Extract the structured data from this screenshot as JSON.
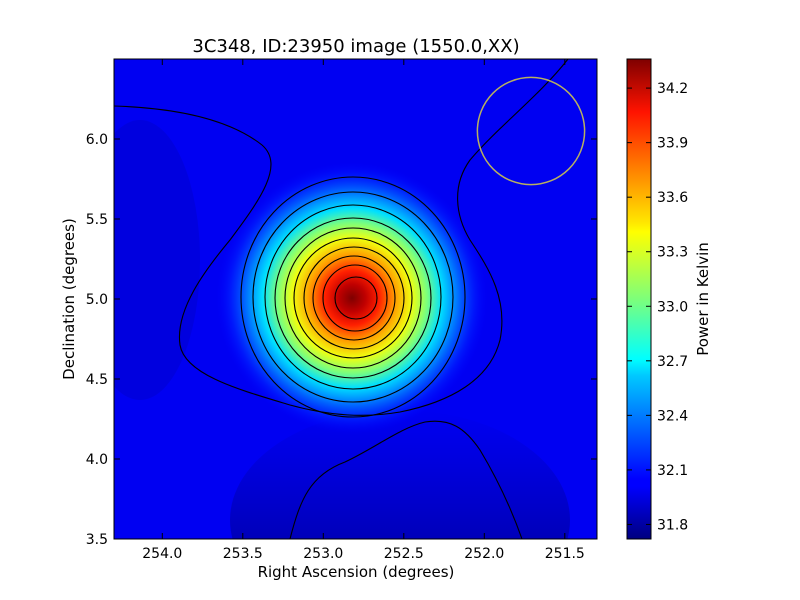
{
  "chart_data": {
    "type": "heatmap",
    "title": "3C348, ID:23950 image (1550.0,XX)",
    "xlabel": "Right Ascension (degrees)",
    "ylabel": "Declination (degrees)",
    "xlim": [
      254.3,
      251.3
    ],
    "ylim": [
      3.5,
      6.5
    ],
    "x_ticks": [
      "254.0",
      "253.5",
      "253.0",
      "252.5",
      "252.0",
      "251.5"
    ],
    "y_ticks": [
      "3.5",
      "4.0",
      "4.5",
      "5.0",
      "5.5",
      "6.0"
    ],
    "grid": false,
    "colormap": "jet",
    "source_peak": {
      "ra": 252.78,
      "dec": 4.99,
      "value": 34.35
    },
    "beam_circle": {
      "ra": 251.71,
      "dec": 6.05,
      "radius_deg": 0.37,
      "color": "#b8b060"
    },
    "colorbar": {
      "label": "Power in Kelvin",
      "range": [
        31.72,
        34.36
      ],
      "ticks": [
        "31.8",
        "32.1",
        "32.4",
        "32.7",
        "33.0",
        "33.3",
        "33.6",
        "33.9",
        "34.2"
      ]
    }
  }
}
